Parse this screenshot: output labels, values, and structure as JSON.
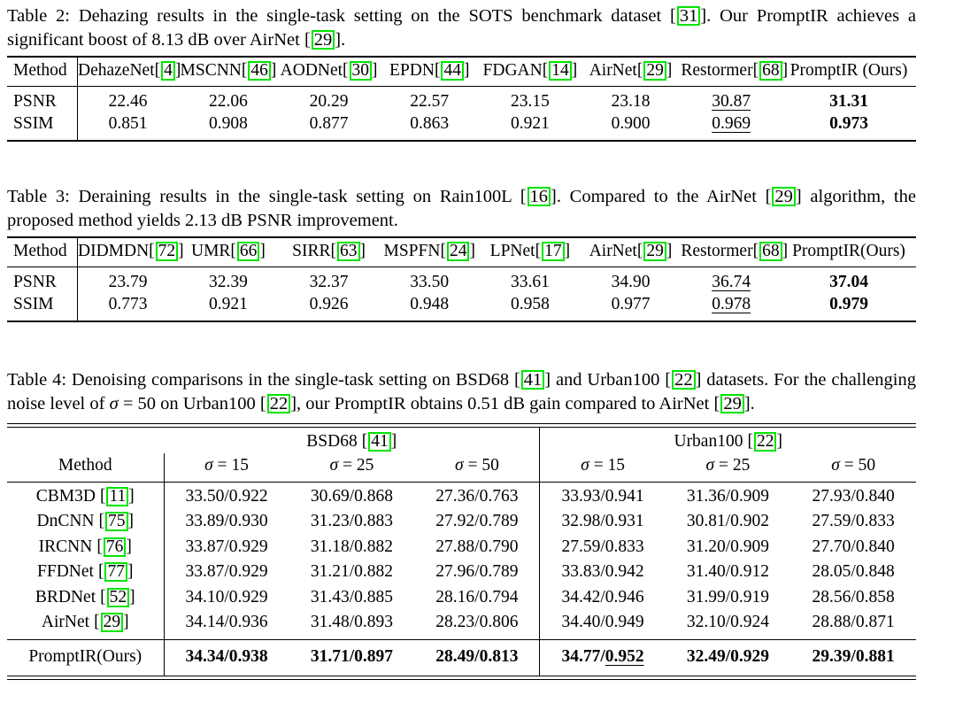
{
  "colors": {
    "background": "#ffffff",
    "text": "#000000",
    "citation_box": "#00e400"
  },
  "table2": {
    "caption": [
      {
        "t": "Table 2: Dehazing results in the single-task setting on the SOTS benchmark dataset "
      },
      {
        "c": "31"
      },
      {
        "t": ". Our PromptIR achieves a significant boost of 8.13 dB over AirNet "
      },
      {
        "c": "29"
      },
      {
        "t": "."
      }
    ],
    "method_label": "Method",
    "methods": [
      {
        "name": "DehazeNet",
        "cite": "4"
      },
      {
        "name": "MSCNN",
        "cite": "46"
      },
      {
        "name": "AODNet",
        "cite": "30"
      },
      {
        "name": "EPDN",
        "cite": "44"
      },
      {
        "name": "FDGAN",
        "cite": "14"
      },
      {
        "name": "AirNet",
        "cite": "29"
      },
      {
        "name": "Restormer",
        "cite": "68"
      },
      {
        "name": "PromptIR (Ours)",
        "cite": null
      }
    ],
    "rows": [
      {
        "label": "PSNR",
        "values": [
          "22.46",
          "22.06",
          "20.29",
          "22.57",
          "23.15",
          "23.18",
          "30.87",
          "31.31"
        ]
      },
      {
        "label": "SSIM",
        "values": [
          "0.851",
          "0.908",
          "0.877",
          "0.863",
          "0.921",
          "0.900",
          "0.969",
          "0.973"
        ]
      }
    ],
    "underline_col": 6,
    "bold_col": 7
  },
  "table3": {
    "caption": [
      {
        "t": "Table 3: Deraining results in the single-task setting on Rain100L "
      },
      {
        "c": "16"
      },
      {
        "t": ". Compared to the AirNet "
      },
      {
        "c": "29"
      },
      {
        "t": " algorithm, the proposed method yields 2.13 dB PSNR improvement."
      }
    ],
    "method_label": "Method",
    "methods": [
      {
        "name": "DIDMDN",
        "cite": "72"
      },
      {
        "name": "UMR",
        "cite": "66"
      },
      {
        "name": "SIRR",
        "cite": "63"
      },
      {
        "name": "MSPFN",
        "cite": "24"
      },
      {
        "name": "LPNet",
        "cite": "17"
      },
      {
        "name": "AirNet",
        "cite": "29"
      },
      {
        "name": "Restormer",
        "cite": "68"
      },
      {
        "name": "PromptIR(Ours)",
        "cite": null
      }
    ],
    "rows": [
      {
        "label": "PSNR",
        "values": [
          "23.79",
          "32.39",
          "32.37",
          "33.50",
          "33.61",
          "34.90",
          "36.74",
          "37.04"
        ]
      },
      {
        "label": "SSIM",
        "values": [
          "0.773",
          "0.921",
          "0.926",
          "0.948",
          "0.958",
          "0.977",
          "0.978",
          "0.979"
        ]
      }
    ],
    "underline_col": 6,
    "bold_col": 7
  },
  "table4": {
    "caption": [
      {
        "t": "Table 4: Denoising comparisons in the single-task setting on BSD68 "
      },
      {
        "c": "41"
      },
      {
        "t": " and Urban100 "
      },
      {
        "c": "22"
      },
      {
        "t": " datasets. For the challenging noise level of "
      },
      {
        "s": "σ"
      },
      {
        "t": " = 50 on Urban100 "
      },
      {
        "c": "22"
      },
      {
        "t": ", our PromptIR obtains 0.51 dB gain compared to AirNet "
      },
      {
        "c": "29"
      },
      {
        "t": "."
      }
    ],
    "method_label": "Method",
    "groups": [
      {
        "name": "BSD68",
        "cite": "41"
      },
      {
        "name": "Urban100",
        "cite": "22"
      }
    ],
    "sigma_cols": [
      {
        "sym": "σ",
        "val": " = 15"
      },
      {
        "sym": "σ",
        "val": " = 25"
      },
      {
        "sym": "σ",
        "val": " = 50"
      },
      {
        "sym": "σ",
        "val": " = 15"
      },
      {
        "sym": "σ",
        "val": " = 25"
      },
      {
        "sym": "σ",
        "val": " = 50"
      }
    ],
    "rows": [
      {
        "label": "CBM3D",
        "cite": "11",
        "values": [
          "33.50/0.922",
          "30.69/0.868",
          "27.36/0.763",
          "33.93/0.941",
          "31.36/0.909",
          "27.93/0.840"
        ]
      },
      {
        "label": "DnCNN",
        "cite": "75",
        "values": [
          "33.89/0.930",
          "31.23/0.883",
          "27.92/0.789",
          "32.98/0.931",
          "30.81/0.902",
          "27.59/0.833"
        ]
      },
      {
        "label": "IRCNN",
        "cite": "76",
        "values": [
          "33.87/0.929",
          "31.18/0.882",
          "27.88/0.790",
          "27.59/0.833",
          "31.20/0.909",
          "27.70/0.840"
        ]
      },
      {
        "label": "FFDNet",
        "cite": "77",
        "values": [
          "33.87/0.929",
          "31.21/0.882",
          "27.96/0.789",
          "33.83/0.942",
          "31.40/0.912",
          "28.05/0.848"
        ]
      },
      {
        "label": "BRDNet",
        "cite": "52",
        "values": [
          "34.10/0.929",
          "31.43/0.885",
          "28.16/0.794",
          "34.42/0.946",
          "31.99/0.919",
          "28.56/0.858"
        ]
      },
      {
        "label": "AirNet",
        "cite": "29",
        "values": [
          "34.14/0.936",
          "31.48/0.893",
          "28.23/0.806",
          "34.40/0.949",
          "32.10/0.924",
          "28.88/0.871"
        ]
      }
    ],
    "final_row": {
      "label": "PromptIR(Ours)",
      "values": [
        {
          "text": "34.34/0.938"
        },
        {
          "text": "31.71/0.897"
        },
        {
          "text": "28.49/0.813"
        },
        {
          "pre": "34.77/",
          "u": "0.952"
        },
        {
          "text": "32.49/0.929"
        },
        {
          "text": "29.39/0.881"
        }
      ]
    }
  }
}
